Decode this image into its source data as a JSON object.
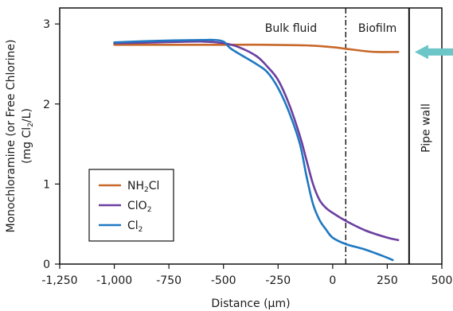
{
  "chart_data": {
    "type": "line",
    "xlabel": "Distance (µm)",
    "ylabel_line1": "Monochloramine (or Free Chlorine)",
    "ylabel_line2_pre": "(mg Cl",
    "ylabel_line2_sub": "2",
    "ylabel_line2_post": "/L)",
    "xlim": [
      -1250,
      500
    ],
    "ylim": [
      0,
      3.2
    ],
    "xticks": [
      -1250,
      -1000,
      -750,
      -500,
      -250,
      0,
      250,
      500
    ],
    "xtick_labels": [
      "-1,250",
      "-1,000",
      "-750",
      "-500",
      "-250",
      "0",
      "250",
      "500"
    ],
    "yticks": [
      0,
      1,
      2,
      3
    ],
    "ytick_labels": [
      "0",
      "1",
      "2",
      "3"
    ],
    "grid": false,
    "legend_position": "lower-left",
    "regions": {
      "bulk_fluid_label": "Bulk fluid",
      "biofilm_label": "Biofilm",
      "pipe_wall_label": "Pipe wall",
      "biofilm_boundary_x": 60,
      "pipe_wall_x": 350
    },
    "arrow_color": "#6cc5c7",
    "series": [
      {
        "name_pre": "NH",
        "name_sub": "2",
        "name_post": "Cl",
        "color": "#c8682a",
        "x": [
          -1000,
          -750,
          -500,
          -300,
          -100,
          0,
          60,
          150,
          200,
          300
        ],
        "y": [
          2.74,
          2.74,
          2.74,
          2.74,
          2.73,
          2.71,
          2.69,
          2.66,
          2.65,
          2.65
        ]
      },
      {
        "name_pre": "ClO",
        "name_sub": "2",
        "name_post": "",
        "color": "#6c3fa0",
        "x": [
          -1000,
          -800,
          -600,
          -500,
          -430,
          -350,
          -300,
          -250,
          -200,
          -150,
          -120,
          -90,
          -60,
          -30,
          0,
          60,
          150,
          250,
          300
        ],
        "y": [
          2.76,
          2.77,
          2.78,
          2.76,
          2.71,
          2.6,
          2.47,
          2.3,
          2.0,
          1.6,
          1.3,
          1.0,
          0.8,
          0.7,
          0.64,
          0.54,
          0.42,
          0.33,
          0.3
        ]
      },
      {
        "name_pre": "Cl",
        "name_sub": "2",
        "name_post": "",
        "color": "#1f78c1",
        "x": [
          -1000,
          -800,
          -600,
          -540,
          -500,
          -470,
          -430,
          -350,
          -300,
          -250,
          -200,
          -150,
          -120,
          -90,
          -60,
          -30,
          0,
          60,
          150,
          240,
          275
        ],
        "y": [
          2.77,
          2.79,
          2.8,
          2.8,
          2.78,
          2.7,
          2.63,
          2.5,
          2.4,
          2.2,
          1.9,
          1.5,
          1.1,
          0.75,
          0.55,
          0.43,
          0.33,
          0.25,
          0.18,
          0.09,
          0.05
        ]
      }
    ]
  }
}
